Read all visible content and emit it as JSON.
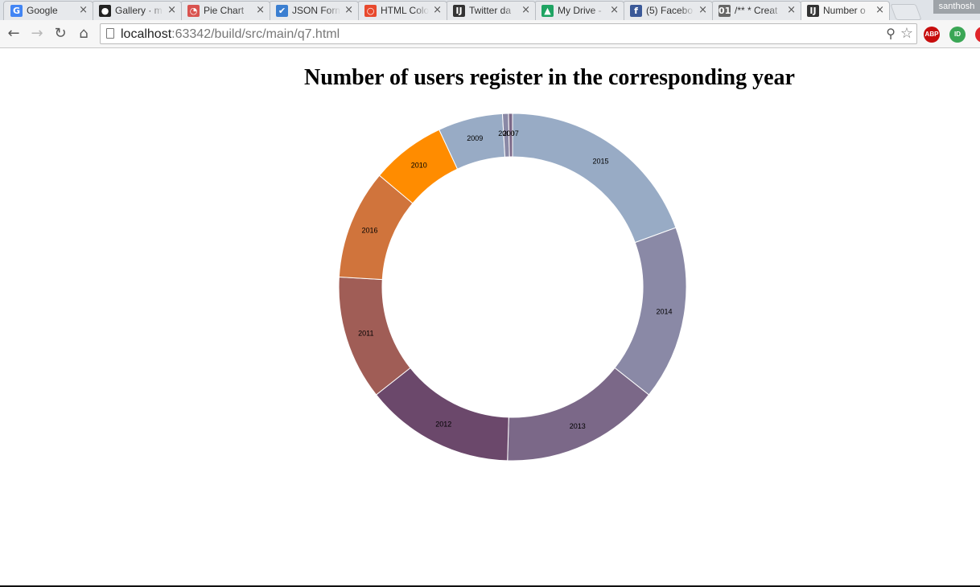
{
  "browser": {
    "tabs": [
      {
        "title": "Google",
        "favicon": "google-icon",
        "color": "#4285f4",
        "glyph": "G"
      },
      {
        "title": "Gallery · m",
        "favicon": "github-icon",
        "color": "#222222",
        "glyph": "●"
      },
      {
        "title": "Pie Chart",
        "favicon": "piechart-icon",
        "color": "#d9534f",
        "glyph": "◔"
      },
      {
        "title": "JSON Form",
        "favicon": "checkbox-icon",
        "color": "#3b7fd1",
        "glyph": "✔"
      },
      {
        "title": "HTML Colo",
        "favicon": "color-icon",
        "color": "#e8492d",
        "glyph": "○"
      },
      {
        "title": "Twitter da",
        "favicon": "intellij-icon",
        "color": "#333333",
        "glyph": "IJ"
      },
      {
        "title": "My Drive -",
        "favicon": "drive-icon",
        "color": "#1fa463",
        "glyph": "▲"
      },
      {
        "title": "(5) Facebo",
        "favicon": "facebook-icon",
        "color": "#3b5998",
        "glyph": "f"
      },
      {
        "title": "/** * Creat",
        "favicon": "binary-icon",
        "color": "#666666",
        "glyph": "01"
      },
      {
        "title": "Number o",
        "favicon": "intellij-icon",
        "color": "#333333",
        "glyph": "IJ",
        "active": true
      }
    ],
    "user": "santhosh",
    "url_host": "localhost",
    "url_rest": ":63342/build/src/main/q7.html",
    "extensions": [
      {
        "name": "adblock-icon",
        "label": "ABP",
        "color": "#c70d0d"
      },
      {
        "name": "ublock-icon",
        "label": "ID",
        "color": "#3aa655"
      },
      {
        "name": "extension-icon",
        "label": "",
        "color": "#e0252a"
      }
    ]
  },
  "chart_data": {
    "type": "pie",
    "variant": "donut",
    "title": "Number of users register in the corresponding year",
    "labels": [
      "2015",
      "2014",
      "2013",
      "2012",
      "2011",
      "2016",
      "2010",
      "2009",
      "2008",
      "2007"
    ],
    "values": [
      21,
      17.5,
      16,
      15,
      12.5,
      11,
      7.5,
      6.5,
      0.6,
      0.4
    ],
    "colors": [
      "#98abc5",
      "#8a89a6",
      "#7b6888",
      "#6b486b",
      "#a05d56",
      "#d0743c",
      "#ff8c00",
      "#98abc5",
      "#8a89a6",
      "#7b6888"
    ]
  }
}
